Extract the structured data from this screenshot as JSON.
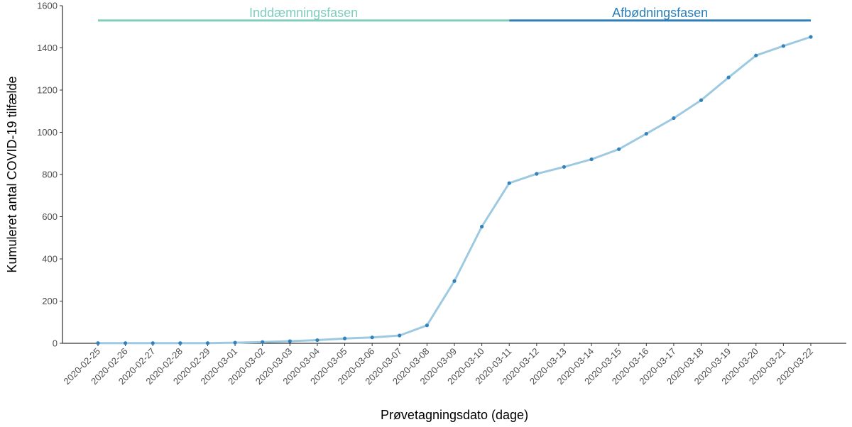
{
  "chart_data": {
    "type": "line",
    "xlabel": "Prøvetagningsdato (dage)",
    "ylabel": "Kumuleret antal COVID-19 tilfælde",
    "ylim": [
      0,
      1600
    ],
    "yticks": [
      0,
      200,
      400,
      600,
      800,
      1000,
      1200,
      1400,
      1600
    ],
    "grid": false,
    "line_color": "#9ecae1",
    "point_color": "#3182bd",
    "x": [
      "2020-02-25",
      "2020-02-26",
      "2020-02-27",
      "2020-02-28",
      "2020-02-29",
      "2020-03-01",
      "2020-03-02",
      "2020-03-03",
      "2020-03-04",
      "2020-03-05",
      "2020-03-06",
      "2020-03-07",
      "2020-03-08",
      "2020-03-09",
      "2020-03-10",
      "2020-03-11",
      "2020-03-12",
      "2020-03-13",
      "2020-03-14",
      "2020-03-15",
      "2020-03-16",
      "2020-03-17",
      "2020-03-18",
      "2020-03-19",
      "2020-03-20",
      "2020-03-21",
      "2020-03-22"
    ],
    "series": [
      {
        "values": [
          1,
          1,
          1,
          1,
          1,
          3,
          6,
          10,
          15,
          23,
          28,
          37,
          85,
          295,
          553,
          759,
          803,
          836,
          872,
          920,
          993,
          1067,
          1152,
          1260,
          1364,
          1409,
          1452
        ]
      }
    ],
    "phases": [
      {
        "label": "Inddæmningsfasen",
        "start": "2020-02-25",
        "end": "2020-03-11",
        "color": "#7fcdbb"
      },
      {
        "label": "Afbødningsfasen",
        "start": "2020-03-11",
        "end": "2020-03-22",
        "color": "#2c7fb8"
      }
    ],
    "phase_line_y": 1530
  }
}
